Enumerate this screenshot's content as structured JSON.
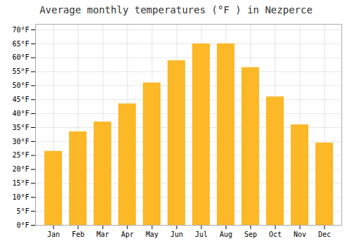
{
  "chart_data": {
    "type": "bar",
    "title": "Average monthly temperatures (°F ) in Nezperce",
    "categories": [
      "Jan",
      "Feb",
      "Mar",
      "Apr",
      "May",
      "Jun",
      "Jul",
      "Aug",
      "Sep",
      "Oct",
      "Nov",
      "Dec"
    ],
    "values": [
      26.5,
      33.5,
      37.0,
      43.5,
      51.0,
      59.0,
      65.0,
      65.0,
      56.5,
      46.0,
      36.0,
      29.5
    ],
    "color": "#FDB827",
    "ylim": [
      0,
      72
    ],
    "yticks": [
      {
        "value": 0,
        "label": "0°F"
      },
      {
        "value": 5,
        "label": "5°F"
      },
      {
        "value": 10,
        "label": "10°F"
      },
      {
        "value": 15,
        "label": "15°F"
      },
      {
        "value": 20,
        "label": "20°F"
      },
      {
        "value": 25,
        "label": "25°F"
      },
      {
        "value": 30,
        "label": "30°F"
      },
      {
        "value": 35,
        "label": "35°F"
      },
      {
        "value": 40,
        "label": "40°F"
      },
      {
        "value": 45,
        "label": "45°F"
      },
      {
        "value": 50,
        "label": "50°F"
      },
      {
        "value": 55,
        "label": "55°F"
      },
      {
        "value": 60,
        "label": "60°F"
      },
      {
        "value": 65,
        "label": "65°F"
      },
      {
        "value": 70,
        "label": "70°F"
      }
    ],
    "grid": true
  }
}
